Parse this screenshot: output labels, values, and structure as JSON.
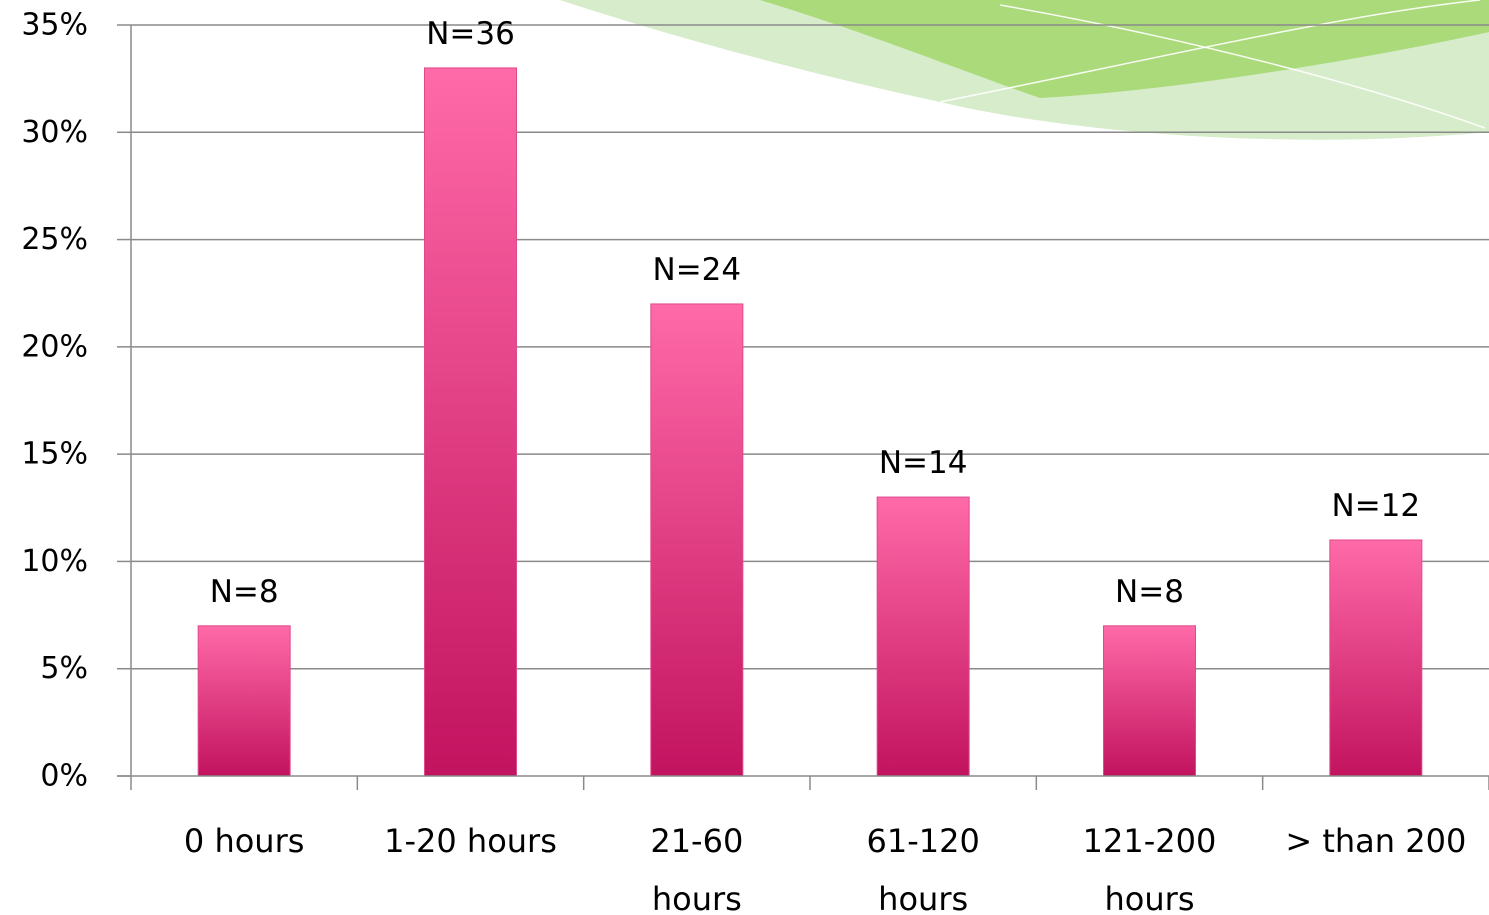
{
  "chart_data": {
    "type": "bar",
    "categories": [
      "0 hours",
      "1-20 hours",
      "21-60 hours",
      "61-120 hours",
      "121-200 hours",
      "> than 200"
    ],
    "category_lines": [
      [
        "0 hours"
      ],
      [
        "1-20 hours"
      ],
      [
        "21-60",
        "hours"
      ],
      [
        "61-120",
        "hours"
      ],
      [
        "121-200",
        "hours"
      ],
      [
        "> than 200"
      ]
    ],
    "values": [
      7,
      33,
      22,
      13,
      7,
      11
    ],
    "data_labels": [
      "N=8",
      "N=36",
      "N=24",
      "N=14",
      "N=8",
      "N=12"
    ],
    "yticks": [
      0,
      5,
      10,
      15,
      20,
      25,
      30,
      35
    ],
    "ytick_labels": [
      "0%",
      "5%",
      "10%",
      "15%",
      "20%",
      "25%",
      "30%",
      "35%"
    ],
    "ylim": [
      0,
      35
    ],
    "grid": true,
    "legend": "none",
    "title": "",
    "xlabel": "",
    "ylabel": ""
  },
  "colors": {
    "bar_top": "#ff6aa8",
    "bar_bottom": "#c2135f",
    "grid": "#8a8a8a",
    "axis": "#8a8a8a",
    "decor_green": "#9ed36b",
    "decor_light": "#c8e8b8"
  }
}
